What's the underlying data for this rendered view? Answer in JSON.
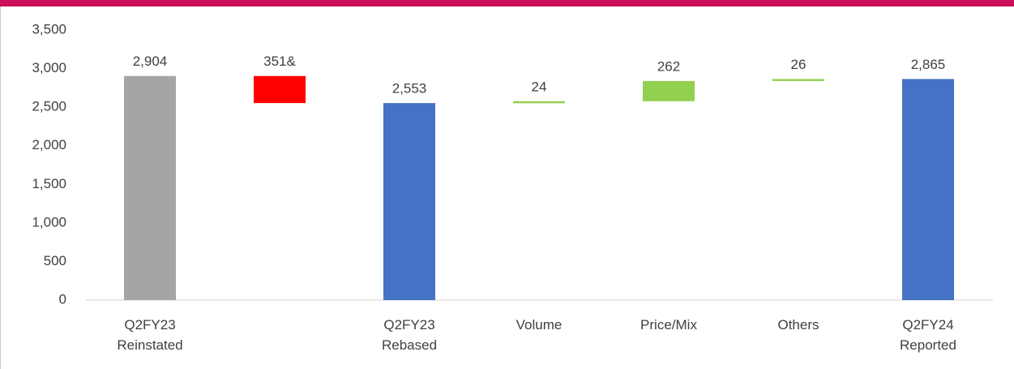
{
  "chart_data": {
    "type": "waterfall",
    "categories": [
      "Q2FY23 Reinstated",
      null,
      "Q2FY23 Rebased",
      "Volume",
      "Price/Mix",
      "Others",
      "Q2FY24 Reported"
    ],
    "values": [
      2904,
      351,
      2553,
      24,
      262,
      26,
      2865
    ],
    "value_labels": [
      "2,904",
      "351&",
      "2,553",
      "24",
      "262",
      "26",
      "2,865"
    ],
    "kinds": [
      "total",
      "decrease",
      "total",
      "increase",
      "increase",
      "increase",
      "total"
    ],
    "colors": [
      "#a5a5a5",
      "#ff0000",
      "#4472c4",
      "#92d050",
      "#92d050",
      "#92d050",
      "#4472c4"
    ],
    "ylim": [
      0,
      3500
    ],
    "yticks": [
      0,
      500,
      {
        "value": 1000,
        "label": "1,000"
      },
      {
        "value": 1500,
        "label": "1,500"
      },
      {
        "value": 2000,
        "label": "2,000"
      },
      {
        "value": 2500,
        "label": "2,500"
      },
      {
        "value": 3000,
        "label": "3,000"
      },
      {
        "value": 3500,
        "label": "3,500"
      }
    ],
    "grid": false
  }
}
